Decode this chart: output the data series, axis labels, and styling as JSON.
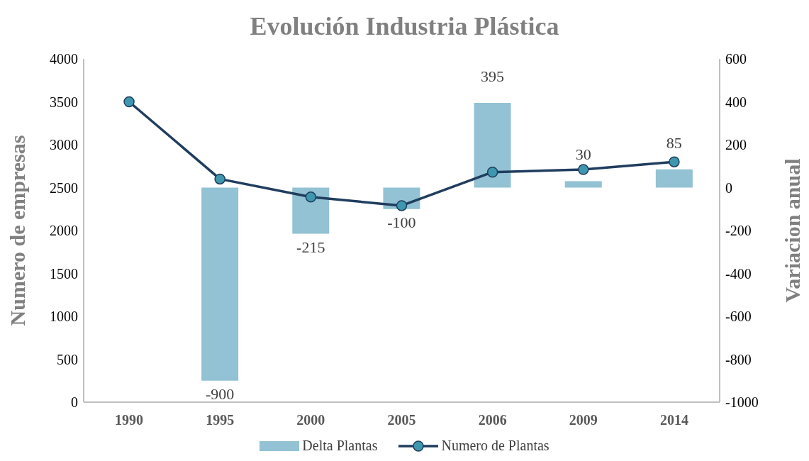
{
  "chart_data": {
    "type": "bar",
    "title": "Evolución Industria Plástica",
    "ylabel": "Numero de empresas",
    "y2label": "Variacion anual",
    "categories": [
      "1990",
      "1995",
      "2000",
      "2005",
      "2006",
      "2009",
      "2014"
    ],
    "series": [
      {
        "name": "Delta Plantas",
        "axis": "y2",
        "color": "#92c2d3",
        "values": [
          null,
          -900,
          -215,
          -100,
          395,
          30,
          85
        ],
        "value_labels": [
          null,
          "-900",
          "-215",
          "-100",
          "395",
          "30",
          "85"
        ]
      },
      {
        "name": "Numero de Plantas",
        "type": "line",
        "color": "#203d5e",
        "values": [
          3500,
          2600,
          2390,
          2290,
          2680,
          2710,
          2800
        ]
      }
    ],
    "ylim": [
      0,
      4000
    ],
    "yticks": [
      0,
      500,
      1000,
      1500,
      2000,
      2500,
      3000,
      3500,
      4000
    ],
    "y2lim": [
      -1000,
      600
    ],
    "y2ticks": [
      -1000,
      -800,
      -600,
      -400,
      -200,
      0,
      200,
      400,
      600
    ],
    "marker": "circle",
    "line_style": "solid",
    "legend": "bottom",
    "grid": false
  }
}
